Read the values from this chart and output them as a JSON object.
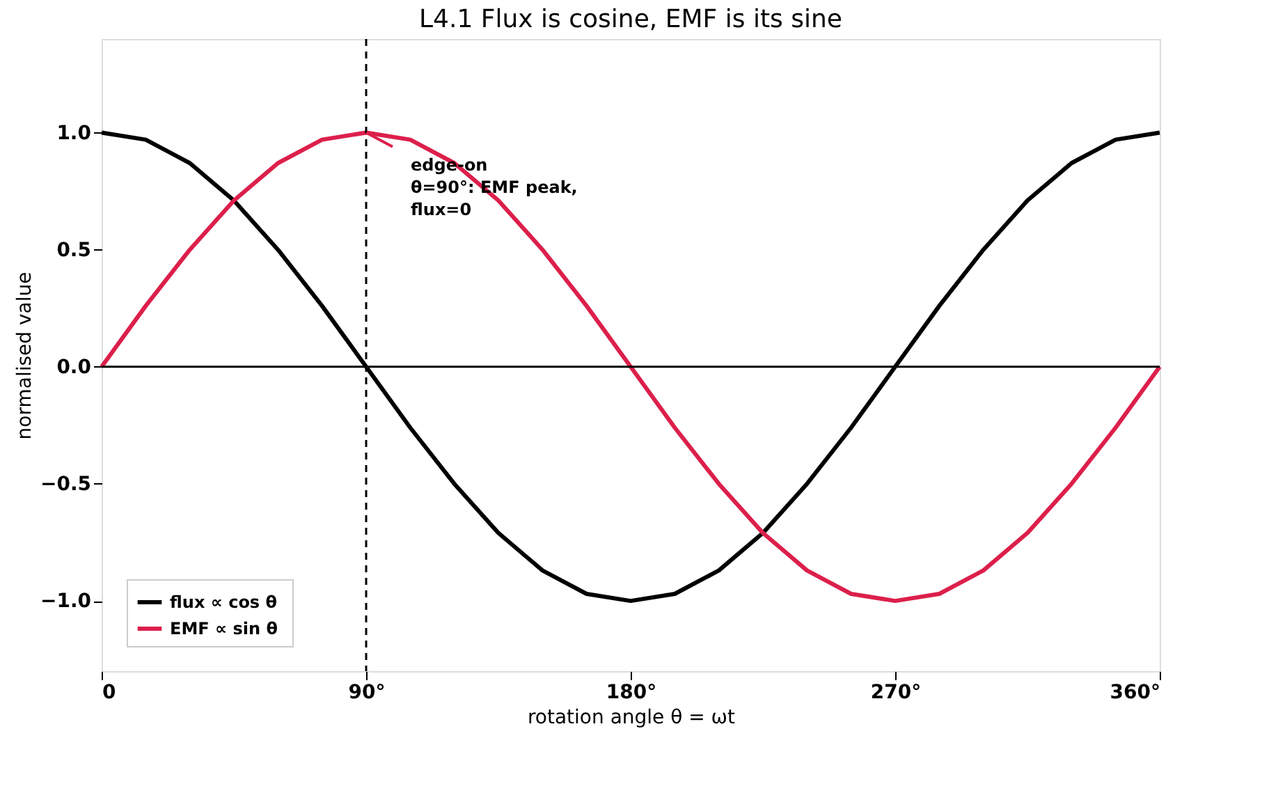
{
  "chart_data": {
    "type": "line",
    "title": "L4.1  Flux is cosine, EMF is its sine",
    "xlabel": "rotation angle θ = ωt",
    "ylabel": "normalised value",
    "x": [
      0,
      15,
      30,
      45,
      60,
      75,
      90,
      105,
      120,
      135,
      150,
      165,
      180,
      195,
      210,
      225,
      240,
      255,
      270,
      285,
      300,
      315,
      330,
      345,
      360
    ],
    "series": [
      {
        "name": "flux  ∝ cos θ",
        "color": "#000000",
        "values": [
          1,
          0.97,
          0.87,
          0.71,
          0.5,
          0.26,
          0,
          -0.26,
          -0.5,
          -0.71,
          -0.87,
          -0.97,
          -1,
          -0.97,
          -0.87,
          -0.71,
          -0.5,
          -0.26,
          0,
          0.26,
          0.5,
          0.71,
          0.87,
          0.97,
          1
        ]
      },
      {
        "name": "EMF  ∝ sin θ",
        "color": "#dc1f4b",
        "values": [
          0,
          0.26,
          0.5,
          0.71,
          0.87,
          0.97,
          1,
          0.97,
          0.87,
          0.71,
          0.5,
          0.26,
          0,
          -0.26,
          -0.5,
          -0.71,
          -0.87,
          -0.97,
          -1,
          -0.97,
          -0.87,
          -0.71,
          -0.5,
          -0.26,
          0
        ]
      }
    ],
    "xlim": [
      0,
      360
    ],
    "xticks": [
      0,
      {
        "value": 90,
        "label": "90°"
      },
      {
        "value": 180,
        "label": "180°"
      },
      {
        "value": 270,
        "label": "270°"
      },
      {
        "value": 360,
        "label": "360°"
      }
    ],
    "ylim": [
      -1.3,
      1.4
    ],
    "yticks": [
      {
        "value": -1,
        "label": "−1.0"
      },
      {
        "value": -0.5,
        "label": "−0.5"
      },
      {
        "value": 0,
        "label": "0.0"
      },
      {
        "value": 0.5,
        "label": "0.5"
      },
      {
        "value": 1,
        "label": "1.0"
      }
    ],
    "ref_lines": [
      {
        "axis": "y",
        "value": 0,
        "color": "#000000",
        "line_style": "solid"
      },
      {
        "axis": "x",
        "value": 90,
        "color": "#000000",
        "line_style": "dashed"
      }
    ],
    "annotations": [
      {
        "text": "edge-on\nθ=90°: EMF peak,\nflux=0",
        "x": 90,
        "y": 1
      }
    ],
    "legend": "bottom left",
    "grid": false,
    "marker": "none",
    "line_style": "solid"
  }
}
